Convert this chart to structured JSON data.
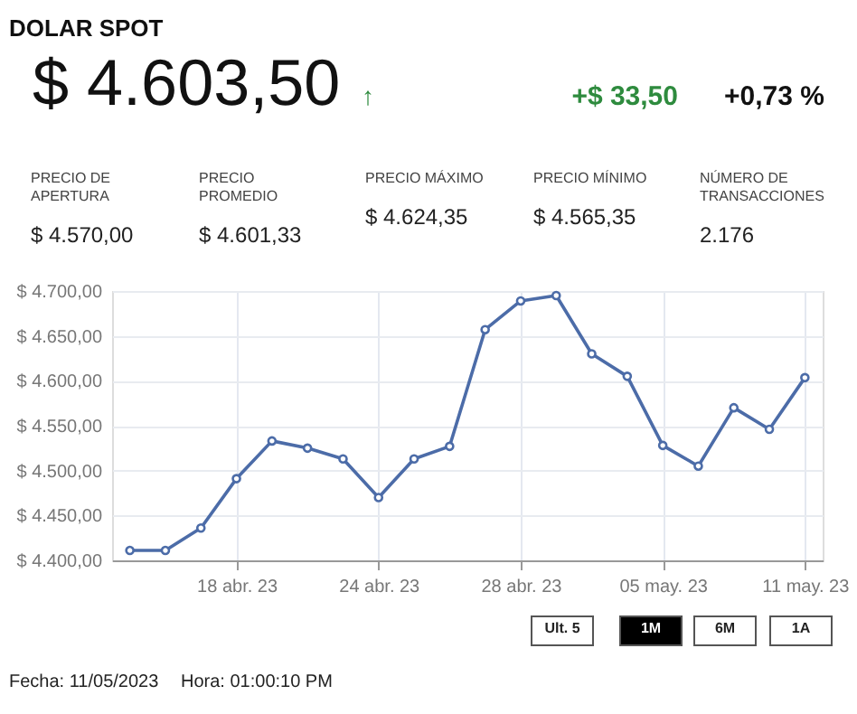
{
  "chart_data": {
    "type": "line",
    "title": "DOLAR SPOT",
    "annotations": [
      "$ 4.603,50",
      "↑",
      "+$ 33,50",
      "+0,73 %",
      "PRECIO DE\nAPERTURA",
      "$ 4.570,00",
      "PRECIO\nPROMEDIO",
      "$ 4.601,33",
      "PRECIO MÁXIMO",
      "$ 4.624,35",
      "PRECIO MÍNIMO",
      "$ 4.565,35",
      "NÚMERO DE\nTRANSACCIONES",
      "2.176",
      "Ult. 5",
      "1M",
      "6M",
      "1A",
      "Fecha: 11/05/2023",
      "Hora: 01:00:10 PM"
    ],
    "categories": [
      null,
      null,
      null,
      "18 abr. 23",
      null,
      null,
      null,
      "24 abr. 23",
      null,
      null,
      null,
      "28 abr. 23",
      null,
      null,
      null,
      "05 may. 23",
      null,
      null,
      null,
      "11 may. 23"
    ],
    "series": [
      {
        "color": "#4c6ca8",
        "values": [
          4411,
          4411,
          4436,
          4491,
          4533,
          4525,
          4513,
          4470,
          4513,
          4527,
          4657,
          4689,
          4695,
          4630,
          4605,
          4528,
          4505,
          4570,
          4546,
          4603.5
        ]
      }
    ],
    "ylim": [
      4400,
      4700
    ],
    "yticks": [
      {
        "value": 4400,
        "label": "$ 4.400,00"
      },
      {
        "value": 4450,
        "label": "$ 4.450,00"
      },
      {
        "value": 4500,
        "label": "$ 4.500,00"
      },
      {
        "value": 4550,
        "label": "$ 4.550,00"
      },
      {
        "value": 4600,
        "label": "$ 4.600,00"
      },
      {
        "value": 4650,
        "label": "$ 4.650,00"
      },
      {
        "value": 4700,
        "label": "$ 4.700,00"
      }
    ],
    "grid": true,
    "marker": "circle",
    "line_style": "solid"
  }
}
